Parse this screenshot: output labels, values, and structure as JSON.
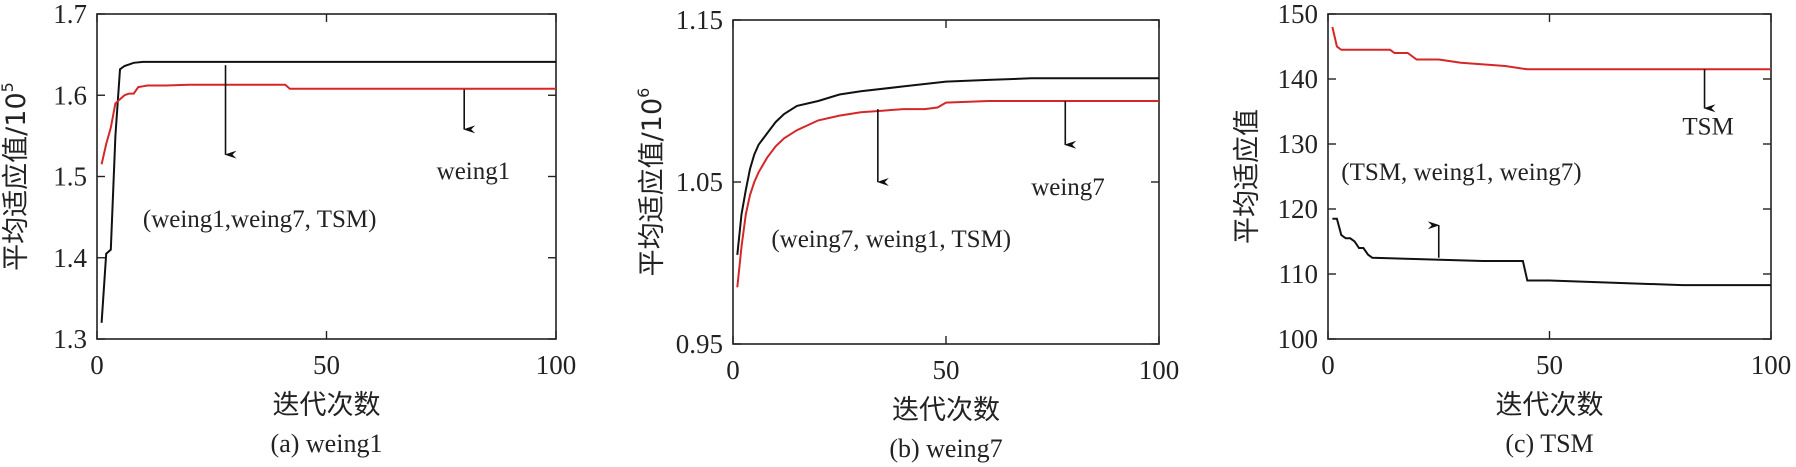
{
  "chart_data": [
    {
      "type": "line",
      "caption": "(a) weing1",
      "xlabel": "迭代次数",
      "ylabel": "平均适应值/10",
      "ylabel_exp": "5",
      "xlim": [
        0,
        100
      ],
      "ylim": [
        1.3,
        1.7
      ],
      "xticks": [
        "0",
        "50",
        "100"
      ],
      "yticks": [
        "1.3",
        "1.4",
        "1.5",
        "1.6",
        "1.7"
      ],
      "series": [
        {
          "color": "#111111",
          "x": [
            1,
            2,
            3,
            4,
            5,
            6,
            8,
            10,
            100
          ],
          "y": [
            1.32,
            1.405,
            1.41,
            1.55,
            1.632,
            1.636,
            1.64,
            1.641,
            1.641
          ]
        },
        {
          "color": "#d62728",
          "x": [
            1,
            2,
            3,
            4,
            5,
            6,
            7,
            8,
            9,
            10,
            11,
            15,
            20,
            30,
            41,
            42,
            100
          ],
          "y": [
            1.515,
            1.54,
            1.56,
            1.59,
            1.595,
            1.6,
            1.602,
            1.602,
            1.61,
            1.611,
            1.612,
            1.612,
            1.613,
            1.613,
            1.613,
            1.608,
            1.608
          ]
        }
      ],
      "annotations": [
        {
          "text": "weing1",
          "x": 74,
          "y": 1.497
        },
        {
          "text": "(weing1,weing7, TSM)",
          "x": 10,
          "y": 1.438
        }
      ],
      "arrows": [
        {
          "x": 28,
          "y_start": 1.637,
          "y_end": 1.527
        },
        {
          "x": 80,
          "y_start": 1.607,
          "y_end": 1.558
        }
      ]
    },
    {
      "type": "line",
      "caption": "(b) weing7",
      "xlabel": "迭代次数",
      "ylabel": "平均适应值/10",
      "ylabel_exp": "6",
      "xlim": [
        0,
        100
      ],
      "ylim": [
        0.95,
        1.15
      ],
      "xticks": [
        "0",
        "50",
        "100"
      ],
      "yticks": [
        "0.95",
        "1.05",
        "1.15"
      ],
      "series": [
        {
          "color": "#111111",
          "x": [
            1,
            2,
            3,
            4,
            5,
            6,
            8,
            10,
            12,
            15,
            20,
            25,
            30,
            40,
            50,
            60,
            70,
            100
          ],
          "y": [
            1.005,
            1.03,
            1.045,
            1.058,
            1.067,
            1.073,
            1.08,
            1.087,
            1.092,
            1.097,
            1.1,
            1.104,
            1.106,
            1.109,
            1.112,
            1.113,
            1.114,
            1.114
          ]
        },
        {
          "color": "#d62728",
          "x": [
            1,
            2,
            3,
            4,
            5,
            6,
            8,
            10,
            12,
            15,
            20,
            25,
            30,
            35,
            40,
            45,
            48,
            50,
            60,
            70,
            100
          ],
          "y": [
            0.985,
            1.01,
            1.03,
            1.042,
            1.05,
            1.056,
            1.065,
            1.072,
            1.077,
            1.082,
            1.088,
            1.091,
            1.093,
            1.094,
            1.095,
            1.095,
            1.096,
            1.099,
            1.1,
            1.1,
            1.1
          ]
        }
      ],
      "annotations": [
        {
          "text": "weing7",
          "x": 70,
          "y": 1.042
        },
        {
          "text": "(weing7, weing1, TSM)",
          "x": 9,
          "y": 1.01
        }
      ],
      "arrows": [
        {
          "x": 34,
          "y_start": 1.095,
          "y_end": 1.05
        },
        {
          "x": 78,
          "y_start": 1.1,
          "y_end": 1.073
        }
      ]
    },
    {
      "type": "line",
      "caption": "(c) TSM",
      "xlabel": "迭代次数",
      "ylabel": "平均适应值",
      "ylabel_exp": "",
      "xlim": [
        0,
        100
      ],
      "ylim": [
        100,
        150
      ],
      "xticks": [
        "0",
        "50",
        "100"
      ],
      "yticks": [
        "100",
        "110",
        "120",
        "130",
        "140",
        "150"
      ],
      "series": [
        {
          "color": "#d62728",
          "x": [
            1,
            2,
            3,
            5,
            8,
            14,
            15,
            18,
            20,
            25,
            30,
            40,
            45,
            100
          ],
          "y": [
            148,
            145,
            144.5,
            144.5,
            144.5,
            144.5,
            144,
            144,
            143,
            143,
            142.5,
            142,
            141.5,
            141.5
          ]
        },
        {
          "color": "#111111",
          "x": [
            1,
            2,
            3,
            4,
            5,
            6,
            7,
            8,
            9,
            10,
            35,
            44,
            45,
            50,
            62,
            80,
            100
          ],
          "y": [
            118.5,
            118.5,
            116,
            115.5,
            115.5,
            115,
            114,
            114,
            113,
            112.5,
            112,
            112,
            109,
            109,
            108.7,
            108.3,
            108.3
          ]
        }
      ],
      "annotations": [
        {
          "text": "TSM",
          "x": 80,
          "y": 131.5
        },
        {
          "text": "(TSM, weing1, weing7)",
          "x": 3,
          "y": 124.5
        }
      ],
      "arrows": [
        {
          "x": 85,
          "y_start": 141.5,
          "y_end": 135.5
        },
        {
          "x": 25,
          "y_start": 112.5,
          "y_end": 117.5
        }
      ]
    }
  ]
}
